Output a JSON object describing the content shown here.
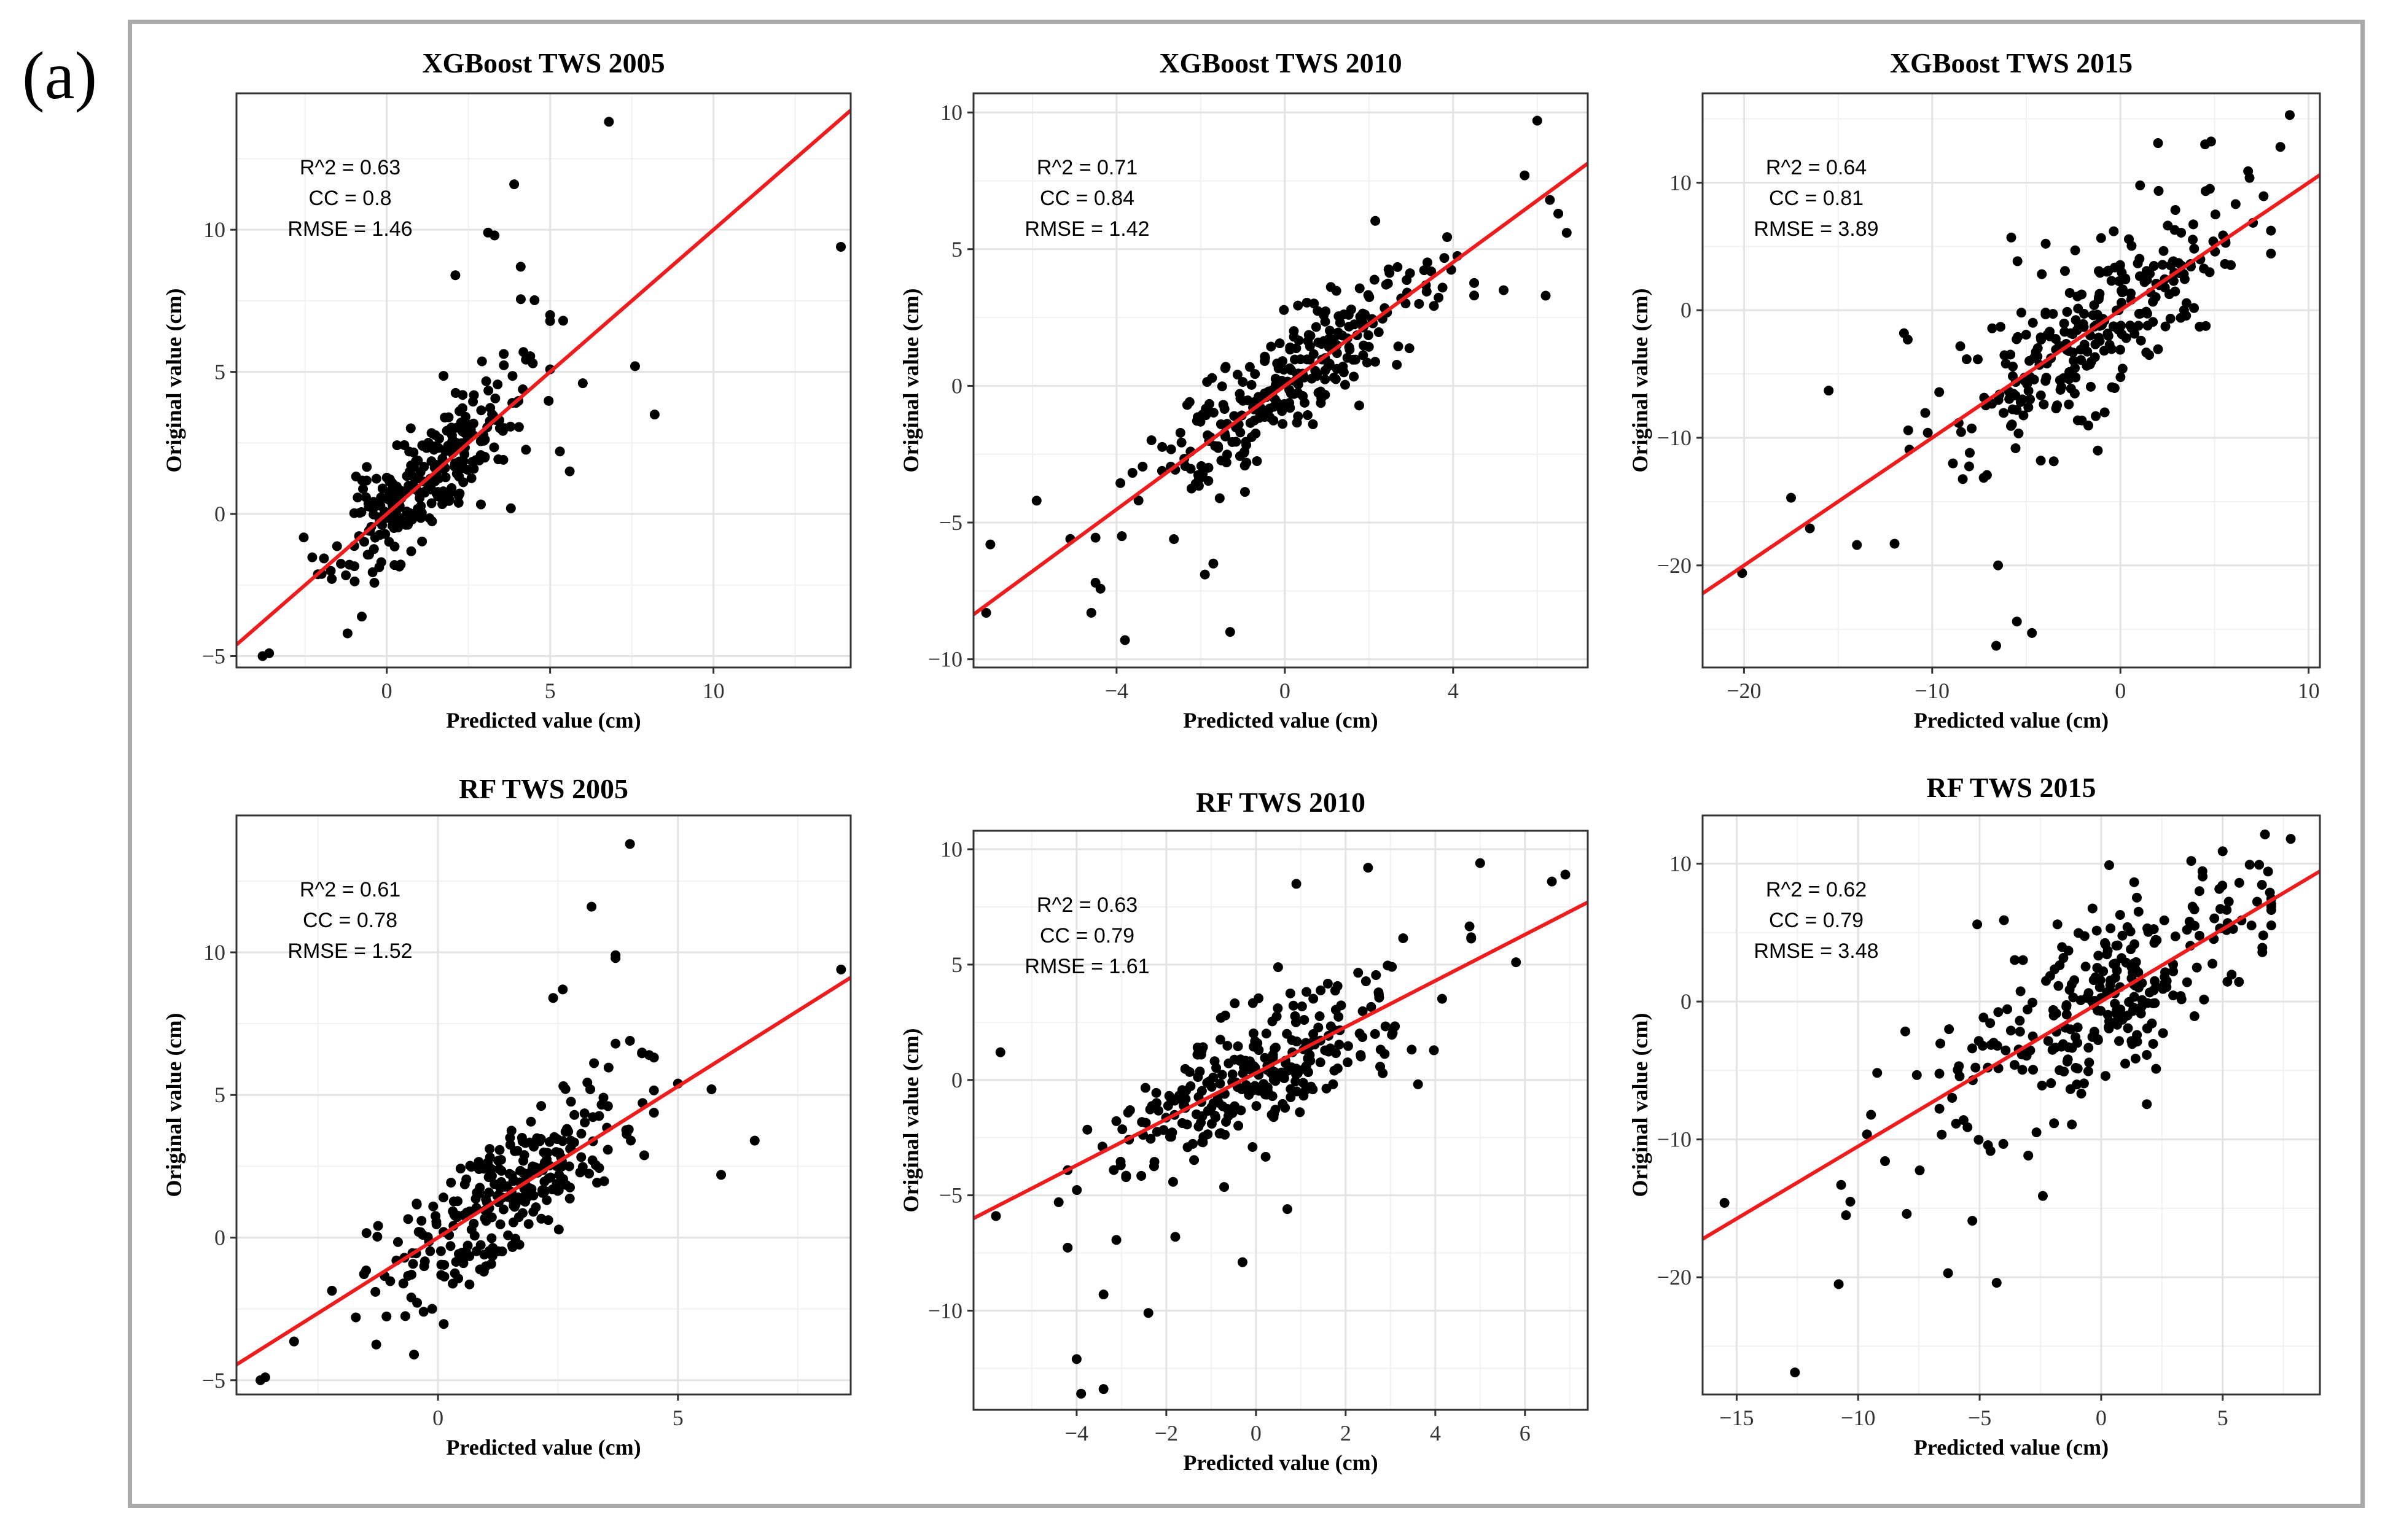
{
  "panel_label": "(a)",
  "chart_data": [
    {
      "type": "scatter",
      "title": "XGBoost TWS 2005",
      "xlabel": "Predicted value (cm)",
      "ylabel": "Original value (cm)",
      "xlim": [
        -4.6,
        14.2
      ],
      "ylim": [
        -5.4,
        14.8
      ],
      "xticks": [
        0,
        5,
        10
      ],
      "yticks": [
        -5,
        0,
        5,
        10
      ],
      "stats": {
        "r2_label": "R^2 =  0.63",
        "cc_label": "CC =   0.8",
        "rmse_label": "RMSE =  1.46"
      },
      "fit": {
        "slope": 1.0,
        "intercept": 0.0
      },
      "seed": 11,
      "n_points": 300,
      "cloud": {
        "xmean": 1.2,
        "xsd": 1.4,
        "xmin": -3.8,
        "xmax": 5.0,
        "noise": 1.0
      },
      "points": [
        [
          6.8,
          13.8
        ],
        [
          3.9,
          11.6
        ],
        [
          3.1,
          9.9
        ],
        [
          3.3,
          9.8
        ],
        [
          2.1,
          8.4
        ],
        [
          4.1,
          8.7
        ],
        [
          13.9,
          9.4
        ],
        [
          5.0,
          7.0
        ],
        [
          5.4,
          6.8
        ],
        [
          7.6,
          5.2
        ],
        [
          8.2,
          3.5
        ],
        [
          6.0,
          4.6
        ],
        [
          5.6,
          1.5
        ],
        [
          5.3,
          2.2
        ],
        [
          3.8,
          0.2
        ],
        [
          -3.8,
          -5.0
        ],
        [
          -3.6,
          -4.9
        ],
        [
          -1.2,
          -4.2
        ]
      ]
    },
    {
      "type": "scatter",
      "title": "XGBoost TWS 2010",
      "xlabel": "Predicted value (cm)",
      "ylabel": "Original value (cm)",
      "xlim": [
        -7.4,
        7.2
      ],
      "ylim": [
        -10.3,
        10.7
      ],
      "xticks": [
        -4,
        0,
        4
      ],
      "yticks": [
        -10,
        -5,
        0,
        5,
        10
      ],
      "stats": {
        "r2_label": "R^2 =  0.71",
        "cc_label": "CC =   0.84",
        "rmse_label": "RMSE =  1.42"
      },
      "fit": {
        "slope": 1.13,
        "intercept": 0.0
      },
      "seed": 23,
      "n_points": 300,
      "cloud": {
        "xmean": 0.0,
        "xsd": 1.7,
        "xmin": -4.5,
        "xmax": 4.5,
        "noise": 1.1
      },
      "points": [
        [
          6.0,
          9.7
        ],
        [
          5.7,
          7.7
        ],
        [
          6.3,
          6.8
        ],
        [
          6.5,
          6.3
        ],
        [
          6.7,
          5.6
        ],
        [
          6.2,
          3.3
        ],
        [
          5.2,
          3.5
        ],
        [
          -7.1,
          -8.3
        ],
        [
          -7.0,
          -5.8
        ],
        [
          -4.6,
          -8.3
        ],
        [
          -3.8,
          -9.3
        ],
        [
          -1.3,
          -9.0
        ],
        [
          -1.7,
          -6.5
        ],
        [
          -1.9,
          -6.9
        ],
        [
          -5.9,
          -4.2
        ],
        [
          -5.1,
          -5.6
        ]
      ]
    },
    {
      "type": "scatter",
      "title": "XGBoost TWS 2015",
      "xlabel": "Predicted value (cm)",
      "ylabel": "Original value (cm)",
      "xlim": [
        -22.2,
        10.6
      ],
      "ylim": [
        -28.0,
        17.0
      ],
      "xticks": [
        -20,
        -10,
        0,
        10
      ],
      "yticks": [
        -20,
        -10,
        0,
        10
      ],
      "stats": {
        "r2_label": "R^2 =  0.64",
        "cc_label": "CC =   0.81",
        "rmse_label": "RMSE =  3.89"
      },
      "fit": {
        "slope": 1.0,
        "intercept": 0.0
      },
      "seed": 37,
      "n_points": 300,
      "cloud": {
        "xmean": -1.0,
        "xsd": 3.8,
        "xmin": -11.5,
        "xmax": 8.0,
        "noise": 3.0
      },
      "points": [
        [
          9.0,
          15.3
        ],
        [
          8.5,
          12.8
        ],
        [
          2.0,
          13.1
        ],
        [
          4.5,
          13.0
        ],
        [
          -20.1,
          -20.6
        ],
        [
          -17.5,
          -14.7
        ],
        [
          -16.5,
          -17.1
        ],
        [
          -14.0,
          -18.4
        ],
        [
          -12.0,
          -18.3
        ],
        [
          -6.5,
          -20.0
        ],
        [
          -6.6,
          -26.3
        ],
        [
          -5.5,
          -24.4
        ],
        [
          -4.7,
          -25.3
        ],
        [
          -15.5,
          -6.3
        ],
        [
          -11.5,
          -1.8
        ],
        [
          -11.3,
          -2.3
        ],
        [
          -5.8,
          5.7
        ],
        [
          -1.2,
          -11.0
        ]
      ]
    },
    {
      "type": "scatter",
      "title": "RF TWS 2005",
      "xlabel": "Predicted value (cm)",
      "ylabel": "Original value (cm)",
      "xlim": [
        -4.2,
        8.6
      ],
      "ylim": [
        -5.5,
        14.8
      ],
      "xticks": [
        0,
        5
      ],
      "yticks": [
        -5,
        0,
        5,
        10
      ],
      "stats": {
        "r2_label": "R^2 =  0.61",
        "cc_label": "CC =   0.78",
        "rmse_label": "RMSE =  1.52"
      },
      "fit": {
        "slope": 1.06,
        "intercept": 0.0
      },
      "seed": 53,
      "n_points": 300,
      "cloud": {
        "xmean": 1.3,
        "xsd": 1.3,
        "xmin": -3.0,
        "xmax": 4.5,
        "noise": 1.1
      },
      "points": [
        [
          4.0,
          13.8
        ],
        [
          3.2,
          11.6
        ],
        [
          3.7,
          9.9
        ],
        [
          3.7,
          9.8
        ],
        [
          2.6,
          8.7
        ],
        [
          2.4,
          8.4
        ],
        [
          8.4,
          9.4
        ],
        [
          3.7,
          6.8
        ],
        [
          4.0,
          6.9
        ],
        [
          4.4,
          6.4
        ],
        [
          5.0,
          5.4
        ],
        [
          5.7,
          5.2
        ],
        [
          6.6,
          3.4
        ],
        [
          5.9,
          2.2
        ],
        [
          -3.7,
          -5.0
        ],
        [
          -3.6,
          -4.9
        ],
        [
          -0.5,
          -4.1
        ],
        [
          -0.3,
          -2.6
        ]
      ]
    },
    {
      "type": "scatter",
      "title": "RF TWS 2010",
      "xlabel": "Predicted value (cm)",
      "ylabel": "Original value (cm)",
      "xlim": [
        -6.3,
        7.4
      ],
      "ylim": [
        -14.3,
        10.8
      ],
      "xticks": [
        -4,
        -2,
        0,
        2,
        4,
        6
      ],
      "yticks": [
        -10,
        -5,
        0,
        5,
        10
      ],
      "stats": {
        "r2_label": "R^2 =  0.63",
        "cc_label": "CC =   0.79",
        "rmse_label": "RMSE =  1.61"
      },
      "fit": {
        "slope": 1.0,
        "intercept": 0.3
      },
      "seed": 71,
      "n_points": 300,
      "cloud": {
        "xmean": 0.0,
        "xsd": 1.8,
        "xmin": -4.2,
        "xmax": 4.8,
        "noise": 1.4
      },
      "points": [
        [
          6.9,
          8.9
        ],
        [
          6.6,
          8.6
        ],
        [
          5.0,
          9.4
        ],
        [
          2.5,
          9.2
        ],
        [
          0.9,
          8.5
        ],
        [
          5.8,
          5.1
        ],
        [
          -5.7,
          1.2
        ],
        [
          -5.8,
          -5.9
        ],
        [
          -4.0,
          -12.1
        ],
        [
          -3.9,
          -13.6
        ],
        [
          -3.4,
          -13.4
        ],
        [
          -3.4,
          -9.3
        ],
        [
          -2.4,
          -10.1
        ],
        [
          -1.8,
          -6.8
        ],
        [
          -0.3,
          -7.9
        ],
        [
          0.7,
          -5.6
        ],
        [
          -4.4,
          -5.3
        ]
      ]
    },
    {
      "type": "scatter",
      "title": "RF TWS 2015",
      "xlabel": "Predicted value (cm)",
      "ylabel": "Original value (cm)",
      "xlim": [
        -16.4,
        9.0
      ],
      "ylim": [
        -28.5,
        13.5
      ],
      "xticks": [
        -15,
        -10,
        -5,
        0,
        5
      ],
      "yticks": [
        -20,
        -10,
        0,
        10
      ],
      "stats": {
        "r2_label": "R^2 =  0.62",
        "cc_label": "CC =   0.79",
        "rmse_label": "RMSE =  3.48"
      },
      "fit": {
        "slope": 1.05,
        "intercept": 0.0
      },
      "seed": 89,
      "n_points": 300,
      "cloud": {
        "xmean": 0.0,
        "xsd": 3.6,
        "xmin": -11.0,
        "xmax": 7.0,
        "noise": 3.0
      },
      "points": [
        [
          7.8,
          11.8
        ],
        [
          5.0,
          10.9
        ],
        [
          -15.5,
          -14.6
        ],
        [
          -12.6,
          -26.9
        ],
        [
          -10.8,
          -20.5
        ],
        [
          -6.3,
          -19.7
        ],
        [
          -4.3,
          -20.4
        ],
        [
          -5.3,
          -15.9
        ],
        [
          -10.5,
          -15.5
        ],
        [
          -8.0,
          -15.4
        ],
        [
          -10.7,
          -13.3
        ],
        [
          -2.4,
          -14.1
        ],
        [
          -5.1,
          5.6
        ],
        [
          -4.0,
          5.9
        ],
        [
          -1.8,
          5.6
        ]
      ]
    }
  ]
}
